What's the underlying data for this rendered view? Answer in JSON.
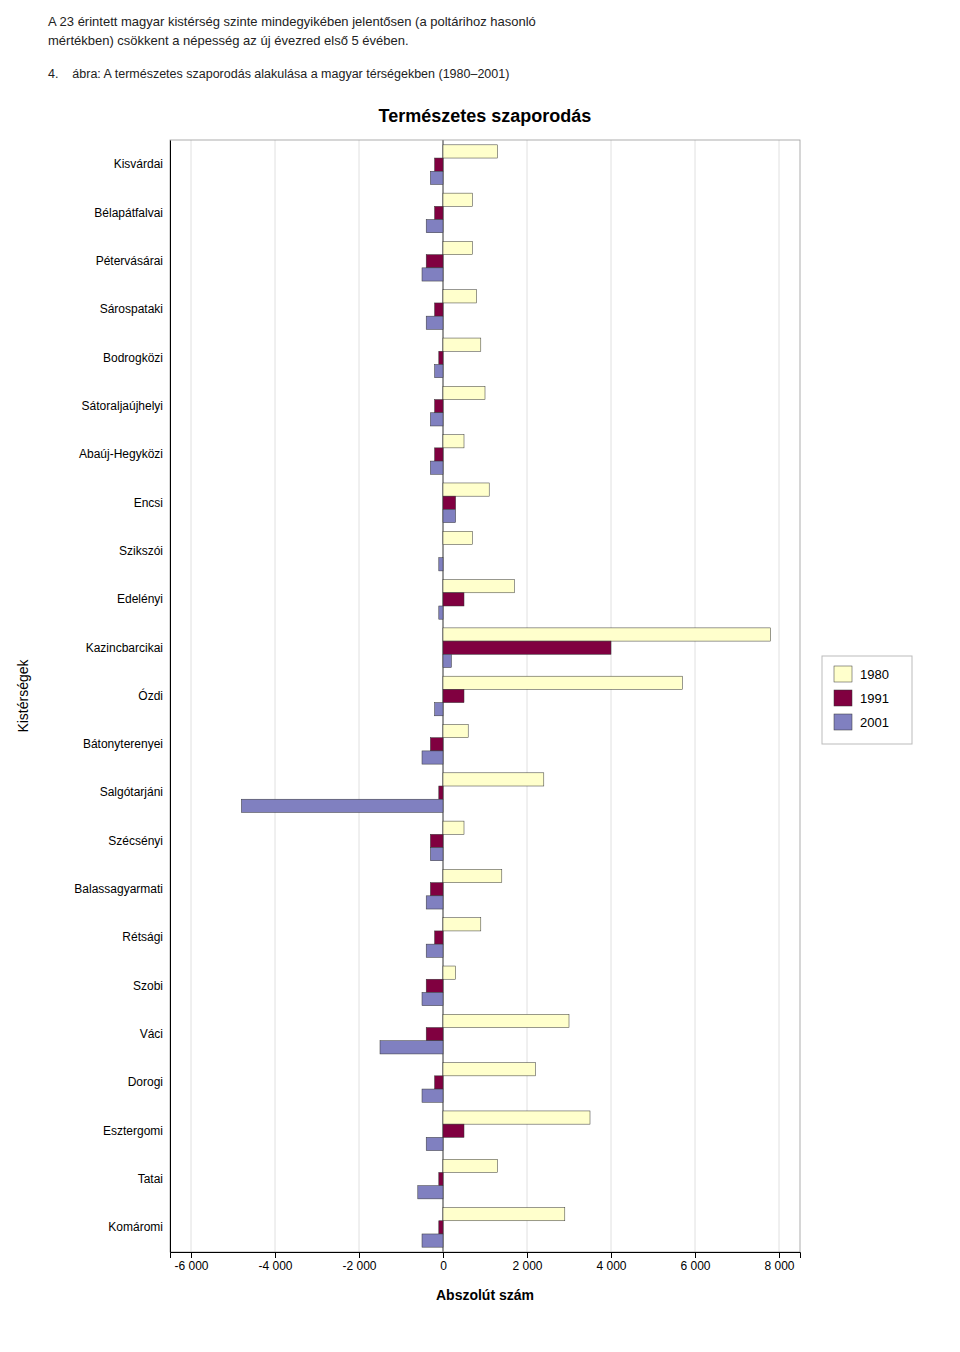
{
  "chart_data": {
    "type": "bar",
    "orientation": "horizontal",
    "title": "Természetes szaporodás",
    "subtitle": "4.    ábra: A természetes szaporodás alakulása a magyar térségekben (1980–2001)",
    "annotations": [
      "A 23 érintett magyar kistérség szinte mindegyikében jelentősen (a poltárihoz hasonló",
      "mértékben) csökkent a népesség az új évezred első 5 évében."
    ],
    "xlabel": "Abszolút szám",
    "ylabel": "Kistérségek",
    "categories": [
      "Komáromi",
      "Tatai",
      "Esztergomi",
      "Dorogi",
      "Váci",
      "Szobi",
      "Rétsági",
      "Balassagyarmati",
      "Szécsényi",
      "Salgótarjáni",
      "Bátonyterenyei",
      "Ózdi",
      "Kazincbarcikai",
      "Edelényi",
      "Szikszói",
      "Encsi",
      "Abaúj-Hegyközi",
      "Sátoraljaújhelyi",
      "Bodrogközi",
      "Sárospataki",
      "Pétervásárai",
      "Bélapátfalvai",
      "Kisvárdai"
    ],
    "series": [
      {
        "name": "1980",
        "color": "#FFFFCC",
        "values": [
          2900,
          1300,
          3500,
          2200,
          3000,
          300,
          900,
          1400,
          500,
          2400,
          600,
          5700,
          7800,
          1700,
          700,
          1100,
          500,
          1000,
          900,
          800,
          700,
          700,
          1300
        ]
      },
      {
        "name": "1991",
        "color": "#800040",
        "values": [
          -100,
          -100,
          500,
          -200,
          -400,
          -400,
          -200,
          -300,
          -300,
          -100,
          -300,
          500,
          4000,
          500,
          0,
          300,
          -200,
          -200,
          -100,
          -200,
          -400,
          -200,
          -200
        ]
      },
      {
        "name": "2001",
        "color": "#8080C0",
        "values": [
          -500,
          -600,
          -400,
          -500,
          -1500,
          -500,
          -400,
          -400,
          -300,
          -4800,
          -500,
          -200,
          200,
          -100,
          -100,
          300,
          -300,
          -300,
          -200,
          -400,
          -500,
          -400,
          -300
        ]
      }
    ],
    "xlim": [
      -6500,
      8500
    ],
    "xticks": [
      {
        "value": -6000,
        "label": "-6 000"
      },
      {
        "value": -4000,
        "label": "-4 000"
      },
      {
        "value": -2000,
        "label": "-2 000"
      },
      0,
      {
        "value": 2000,
        "label": "2 000"
      },
      {
        "value": 4000,
        "label": "4 000"
      },
      {
        "value": 6000,
        "label": "6 000"
      },
      {
        "value": 8000,
        "label": "8 000"
      }
    ],
    "grid": true,
    "legend": "right"
  }
}
